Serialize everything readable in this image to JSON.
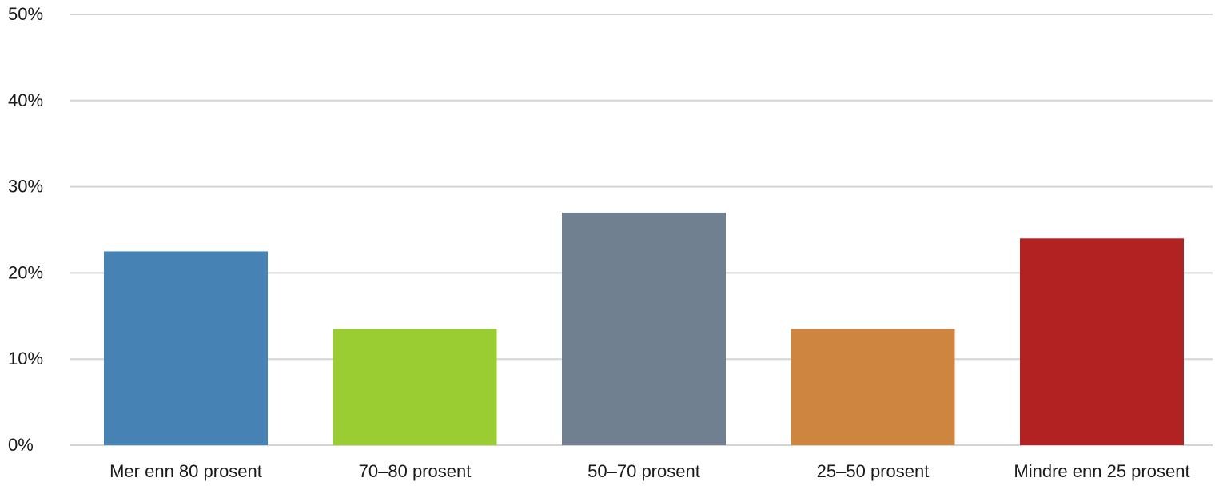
{
  "chart_data": {
    "type": "bar",
    "title": "",
    "xlabel": "",
    "ylabel": "",
    "ylim": [
      0,
      50
    ],
    "grid": true,
    "legend": "none",
    "y_ticks": [
      "0%",
      "10%",
      "20%",
      "30%",
      "40%",
      "50%"
    ],
    "y_tick_values": [
      0,
      10,
      20,
      30,
      40,
      50
    ],
    "categories": [
      "Mer enn 80 prosent",
      "70–80 prosent",
      "50–70 prosent",
      "25–50 prosent",
      "Mindre enn 25 prosent"
    ],
    "values": [
      22.5,
      13.5,
      27.0,
      13.5,
      24.0
    ],
    "colors": [
      "#4682b4",
      "#9acd32",
      "#708090",
      "#cd853f",
      "#b22222"
    ]
  }
}
